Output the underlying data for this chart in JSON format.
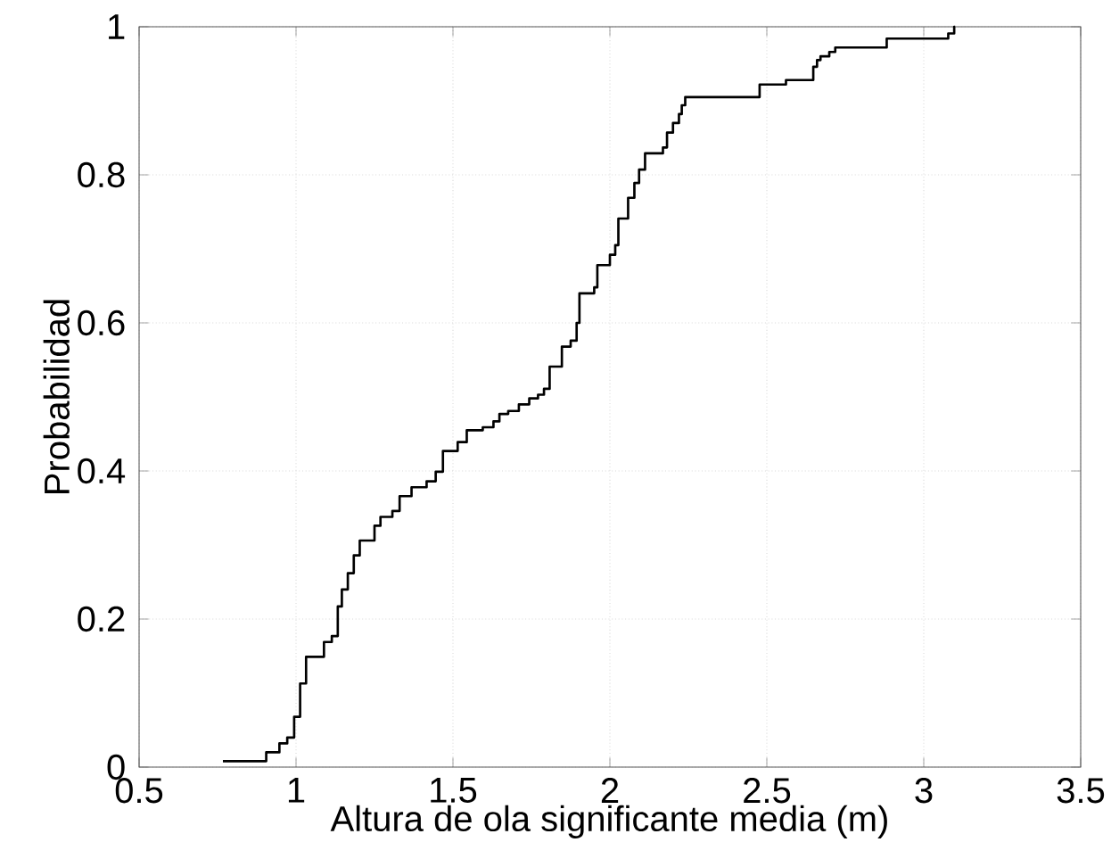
{
  "chart_data": {
    "type": "step",
    "xlabel": "Altura de ola significante media (m)",
    "ylabel": "Probabilidad",
    "xlim": [
      0.5,
      3.5
    ],
    "ylim": [
      0,
      1
    ],
    "xticks": [
      {
        "value": 0.5,
        "label": "0.5"
      },
      1,
      {
        "value": 1.5,
        "label": "1.5"
      },
      2,
      {
        "value": 2.5,
        "label": "2.5"
      },
      3,
      {
        "value": 3.5,
        "label": "3.5"
      }
    ],
    "yticks": [
      0,
      {
        "value": 0.2,
        "label": "0.2"
      },
      {
        "value": 0.4,
        "label": "0.4"
      },
      {
        "value": 0.6,
        "label": "0.6"
      },
      {
        "value": 0.8,
        "label": "0.8"
      },
      1
    ],
    "grid": true,
    "marker": "none",
    "line_style": "solid",
    "series": [
      {
        "color": "#000000",
        "x": [
          0.767,
          0.905,
          0.947,
          0.972,
          0.994,
          1.013,
          1.032,
          1.089,
          1.114,
          1.133,
          1.146,
          1.165,
          1.184,
          1.203,
          1.25,
          1.269,
          1.307,
          1.33,
          1.368,
          1.416,
          1.445,
          1.468,
          1.515,
          1.544,
          1.595,
          1.629,
          1.648,
          1.676,
          1.71,
          1.743,
          1.771,
          1.79,
          1.808,
          1.847,
          1.875,
          1.894,
          1.903,
          1.95,
          1.96,
          2.0,
          2.017,
          2.027,
          2.058,
          2.078,
          2.093,
          2.112,
          2.169,
          2.182,
          2.201,
          2.22,
          2.229,
          2.24,
          2.477,
          2.561,
          2.648,
          2.66,
          2.671,
          2.699,
          2.718,
          2.882,
          3.078,
          3.097,
          3.1
        ],
        "values": [
          0.008,
          0.02,
          0.032,
          0.04,
          0.068,
          0.113,
          0.149,
          0.169,
          0.177,
          0.217,
          0.24,
          0.262,
          0.286,
          0.306,
          0.326,
          0.338,
          0.346,
          0.366,
          0.378,
          0.386,
          0.399,
          0.427,
          0.439,
          0.455,
          0.459,
          0.467,
          0.477,
          0.481,
          0.49,
          0.498,
          0.503,
          0.511,
          0.541,
          0.568,
          0.576,
          0.6,
          0.64,
          0.648,
          0.678,
          0.692,
          0.705,
          0.741,
          0.769,
          0.789,
          0.807,
          0.829,
          0.837,
          0.857,
          0.87,
          0.882,
          0.894,
          0.905,
          0.922,
          0.928,
          0.946,
          0.955,
          0.96,
          0.966,
          0.972,
          0.984,
          0.991,
          1.0,
          1.0
        ]
      }
    ]
  }
}
